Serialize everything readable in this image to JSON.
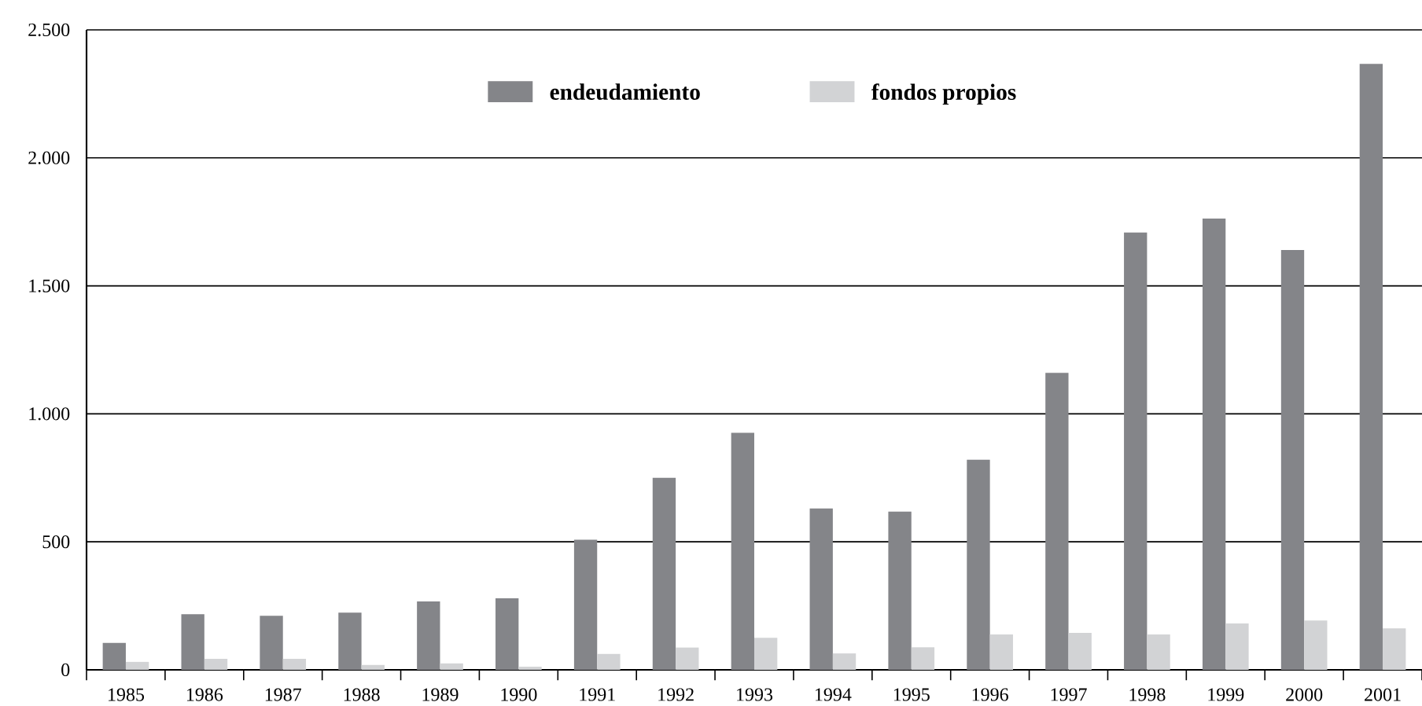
{
  "chart_data": {
    "type": "bar",
    "categories": [
      "1985",
      "1986",
      "1987",
      "1988",
      "1989",
      "1990",
      "1991",
      "1992",
      "1993",
      "1994",
      "1995",
      "1996",
      "1997",
      "1998",
      "1999",
      "2000",
      "2001"
    ],
    "series": [
      {
        "name": "endeudamiento",
        "color": "#848589",
        "values": [
          105,
          217,
          211,
          223,
          267,
          279,
          508,
          750,
          926,
          630,
          618,
          821,
          1160,
          1708,
          1763,
          1640,
          2367
        ]
      },
      {
        "name": "fondos propios",
        "color": "#d2d3d5",
        "values": [
          31,
          43,
          43,
          19,
          25,
          12,
          62,
          87,
          125,
          64,
          88,
          138,
          144,
          138,
          181,
          193,
          162
        ]
      }
    ],
    "ylim": [
      0,
      2500
    ],
    "yticks": [
      {
        "value": 0,
        "label": "0"
      },
      {
        "value": 500,
        "label": "500"
      },
      {
        "value": 1000,
        "label": "1.000"
      },
      {
        "value": 1500,
        "label": "1.500"
      },
      {
        "value": 2000,
        "label": "2.000"
      },
      {
        "value": 2500,
        "label": "2.500"
      }
    ],
    "grid": "y",
    "legend": "top"
  }
}
